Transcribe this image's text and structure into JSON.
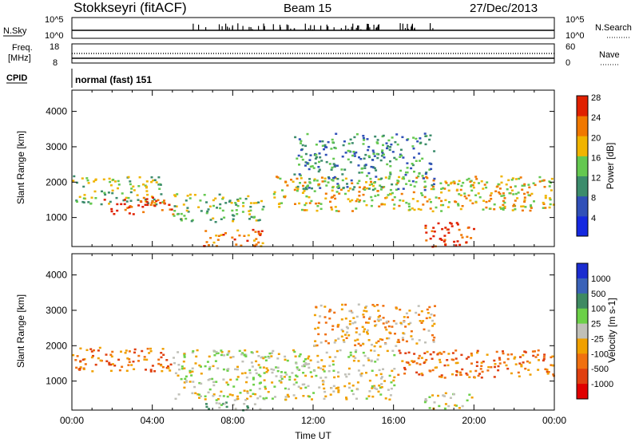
{
  "header": {
    "station": "Stokkseyri (fitACF)",
    "beam": "Beam 15",
    "date": "27/Dec/2013"
  },
  "nsky_panel": {
    "label": "N.Sky",
    "right_label": "N.Search",
    "tick_top_left": "10^5",
    "tick_bottom_left": "10^0",
    "tick_top_right": "10^5",
    "tick_bottom_right": "10^0"
  },
  "freq_panel": {
    "label_line1": "Freq.",
    "label_line2": "[MHz]",
    "tick_top_left": "18",
    "tick_bottom_left": "8",
    "right_label": "Nave",
    "tick_top_right": "60",
    "tick_bottom_right": "0"
  },
  "cpid": {
    "label": "CPID",
    "mode": "normal (fast) 151"
  },
  "power_colorbar": {
    "label": "Power [dB]",
    "ticks": [
      "4",
      "8",
      "12",
      "16",
      "20",
      "24",
      "28"
    ],
    "colors": [
      "#1428e0",
      "#3050b8",
      "#3c8c6c",
      "#64c850",
      "#f0b400",
      "#f07800",
      "#e02000"
    ]
  },
  "velocity_colorbar": {
    "label": "Velocity [m s-1]",
    "ticks": [
      "1000",
      "500",
      "100",
      "25",
      "-25",
      "-100",
      "-500",
      "-1000"
    ],
    "colors": [
      "#1a2cd0",
      "#3a62b8",
      "#3e8a62",
      "#6cd048",
      "#c0c0b8",
      "#f0a000",
      "#f07010",
      "#e04010",
      "#e00000"
    ]
  },
  "chart_data": [
    {
      "type": "heatmap",
      "name": "power",
      "ylabel": "Slant Range [km]",
      "xlim": [
        "00:00",
        "24:00"
      ],
      "ylim": [
        180,
        4600
      ],
      "yticks": [
        "1000",
        "2000",
        "3000",
        "4000"
      ],
      "blobs": [
        {
          "t0": 0.0,
          "t1": 4.5,
          "r0": 1400,
          "r1": 2200,
          "level": 3
        },
        {
          "t0": 1.5,
          "t1": 5.0,
          "r0": 1100,
          "r1": 1600,
          "level": 6
        },
        {
          "t0": 5.0,
          "t1": 9.5,
          "r0": 900,
          "r1": 1700,
          "level": 3
        },
        {
          "t0": 6.5,
          "t1": 9.5,
          "r0": 200,
          "r1": 700,
          "level": 5
        },
        {
          "t0": 10.0,
          "t1": 24.0,
          "r0": 1200,
          "r1": 2200,
          "level": 4
        },
        {
          "t0": 11.0,
          "t1": 18.0,
          "r0": 1800,
          "r1": 3400,
          "level": 2
        },
        {
          "t0": 17.5,
          "t1": 20.0,
          "r0": 200,
          "r1": 900,
          "level": 6
        }
      ]
    },
    {
      "type": "heatmap",
      "name": "velocity",
      "ylabel": "Slant Range [km]",
      "xlabel": "Time UT",
      "xlim": [
        "00:00",
        "24:00"
      ],
      "ylim": [
        180,
        4600
      ],
      "yticks": [
        "1000",
        "2000",
        "3000",
        "4000"
      ],
      "xticks": [
        "00:00",
        "04:00",
        "08:00",
        "12:00",
        "16:00",
        "20:00",
        "00:00"
      ],
      "blobs": [
        {
          "t0": 0.0,
          "t1": 5.0,
          "r0": 1300,
          "r1": 2000,
          "level": 6
        },
        {
          "t0": 5.0,
          "t1": 16.0,
          "r0": 500,
          "r1": 1900,
          "level": 4
        },
        {
          "t0": 12.0,
          "t1": 18.0,
          "r0": 2000,
          "r1": 3200,
          "level": 5
        },
        {
          "t0": 16.0,
          "t1": 24.0,
          "r0": 1100,
          "r1": 1900,
          "level": 6
        },
        {
          "t0": 6.5,
          "t1": 9.5,
          "r0": 200,
          "r1": 500,
          "level": 3
        },
        {
          "t0": 17.5,
          "t1": 20.0,
          "r0": 250,
          "r1": 700,
          "level": 4
        }
      ]
    }
  ]
}
